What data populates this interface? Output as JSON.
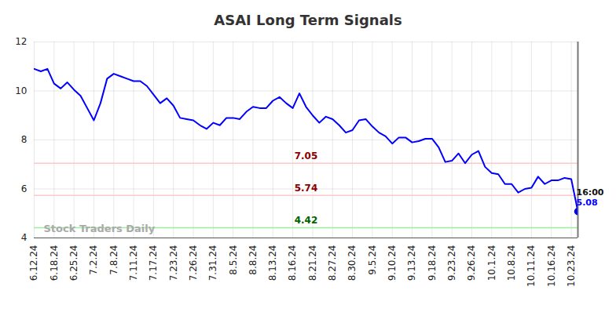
{
  "chart_data": {
    "type": "line",
    "title": "ASAI Long Term Signals",
    "categories": [
      "6.12.24",
      null,
      null,
      "6.18.24",
      null,
      null,
      "6.25.24",
      null,
      null,
      "7.2.24",
      null,
      null,
      "7.8.24",
      null,
      null,
      "7.11.24",
      null,
      null,
      "7.17.24",
      null,
      null,
      "7.23.24",
      null,
      null,
      "7.26.24",
      null,
      null,
      "7.31.24",
      null,
      null,
      "8.5.24",
      null,
      null,
      "8.8.24",
      null,
      null,
      "8.13.24",
      null,
      null,
      "8.16.24",
      null,
      null,
      "8.21.24",
      null,
      null,
      "8.27.24",
      null,
      null,
      "8.30.24",
      null,
      null,
      "9.5.24",
      null,
      null,
      "9.10.24",
      null,
      null,
      "9.13.24",
      null,
      null,
      "9.18.24",
      null,
      null,
      "9.23.24",
      null,
      null,
      "9.26.24",
      null,
      null,
      "10.1.24",
      null,
      null,
      "10.8.24",
      null,
      null,
      "10.11.24",
      null,
      null,
      "10.16.24",
      null,
      null,
      "10.23.24",
      null
    ],
    "series": [
      {
        "color": "#0000ff",
        "values": [
          10.9,
          10.8,
          10.9,
          10.3,
          10.1,
          10.35,
          10.05,
          9.8,
          9.3,
          8.8,
          9.5,
          10.5,
          10.7,
          10.6,
          10.5,
          10.4,
          10.4,
          10.2,
          9.85,
          9.5,
          9.7,
          9.4,
          8.9,
          8.85,
          8.8,
          8.6,
          8.45,
          8.7,
          8.6,
          8.9,
          8.9,
          8.85,
          9.15,
          9.35,
          9.3,
          9.3,
          9.6,
          9.75,
          9.5,
          9.3,
          9.9,
          9.35,
          9.0,
          8.7,
          8.95,
          8.85,
          8.6,
          8.3,
          8.4,
          8.8,
          8.85,
          8.55,
          8.3,
          8.15,
          7.85,
          8.1,
          8.1,
          7.9,
          7.95,
          8.05,
          8.05,
          7.7,
          7.1,
          7.15,
          7.45,
          7.05,
          7.4,
          7.55,
          6.9,
          6.65,
          6.6,
          6.2,
          6.2,
          5.85,
          6.0,
          6.05,
          6.5,
          6.2,
          6.35,
          6.35,
          6.45,
          6.4,
          5.08
        ]
      }
    ],
    "ylim": [
      4,
      12
    ],
    "yticks": [
      4,
      6,
      8,
      10,
      12
    ],
    "grid": true,
    "reference_lines": [
      {
        "value": 7.05,
        "color": "#ffc8c8"
      },
      {
        "value": 5.74,
        "color": "#ffc8c8"
      },
      {
        "value": 4.42,
        "color": "#99ee99"
      }
    ],
    "annotations": [
      {
        "text": "16:00"
      }
    ],
    "watermark": "Stock Traders Daily"
  }
}
